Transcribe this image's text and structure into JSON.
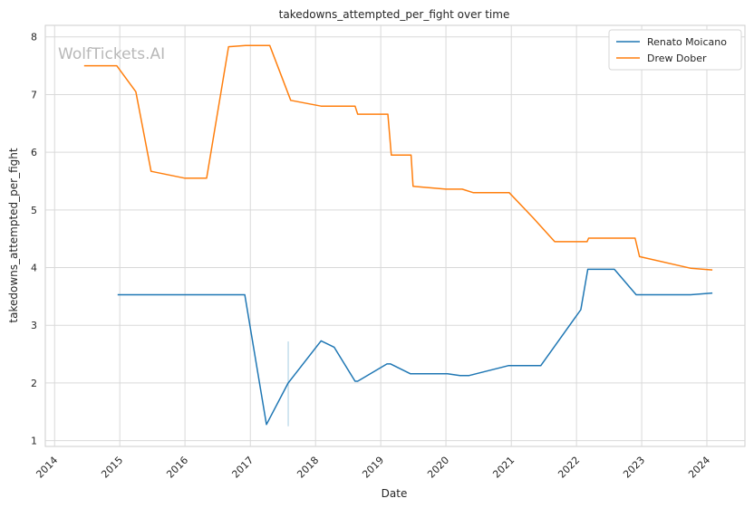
{
  "chart_data": {
    "type": "line",
    "title": "takedowns_attempted_per_fight over time",
    "xlabel": "Date",
    "ylabel": "takedowns_attempted_per_fight",
    "watermark": "WolfTickets.AI",
    "xlim": [
      "2013-11-10",
      "2024-08-01"
    ],
    "ylim": [
      0.9,
      8.2
    ],
    "x_ticks": [
      "2014",
      "2015",
      "2016",
      "2017",
      "2018",
      "2019",
      "2020",
      "2021",
      "2022",
      "2023",
      "2024"
    ],
    "y_ticks": [
      "1",
      "2",
      "3",
      "4",
      "5",
      "6",
      "7",
      "8"
    ],
    "grid": true,
    "legend_position": "top-right",
    "series": [
      {
        "name": "Renato Moicano",
        "color": "#1f77b4",
        "points": [
          [
            "2014-12-20",
            3.53
          ],
          [
            "2016-12-01",
            3.53
          ],
          [
            "2017-04-01",
            1.28
          ],
          [
            "2017-08-01",
            2.0
          ],
          [
            "2018-02-01",
            2.73
          ],
          [
            "2018-04-15",
            2.62
          ],
          [
            "2018-08-10",
            2.03
          ],
          [
            "2018-08-25",
            2.03
          ],
          [
            "2019-02-05",
            2.33
          ],
          [
            "2019-02-25",
            2.33
          ],
          [
            "2019-06-15",
            2.16
          ],
          [
            "2020-01-10",
            2.16
          ],
          [
            "2020-03-20",
            2.13
          ],
          [
            "2020-05-10",
            2.13
          ],
          [
            "2020-12-15",
            2.3
          ],
          [
            "2021-06-15",
            2.3
          ],
          [
            "2022-01-25",
            3.27
          ],
          [
            "2022-03-05",
            3.97
          ],
          [
            "2022-08-01",
            3.97
          ],
          [
            "2022-12-01",
            3.53
          ],
          [
            "2023-10-01",
            3.53
          ],
          [
            "2024-02-01",
            3.56
          ]
        ]
      },
      {
        "name": "Drew Dober",
        "color": "#ff7f0e",
        "points": [
          [
            "2014-06-15",
            7.5
          ],
          [
            "2014-12-15",
            7.5
          ],
          [
            "2015-04-01",
            7.05
          ],
          [
            "2015-06-25",
            5.67
          ],
          [
            "2016-01-01",
            5.55
          ],
          [
            "2016-05-01",
            5.55
          ],
          [
            "2016-09-01",
            7.83
          ],
          [
            "2016-12-05",
            7.85
          ],
          [
            "2017-04-20",
            7.85
          ],
          [
            "2017-08-15",
            6.9
          ],
          [
            "2018-02-01",
            6.8
          ],
          [
            "2018-08-10",
            6.8
          ],
          [
            "2018-08-25",
            6.66
          ],
          [
            "2019-02-10",
            6.66
          ],
          [
            "2019-03-01",
            5.95
          ],
          [
            "2019-06-20",
            5.95
          ],
          [
            "2019-07-01",
            5.41
          ],
          [
            "2020-01-01",
            5.36
          ],
          [
            "2020-04-01",
            5.36
          ],
          [
            "2020-06-01",
            5.3
          ],
          [
            "2020-12-20",
            5.3
          ],
          [
            "2021-05-01",
            4.87
          ],
          [
            "2021-09-01",
            4.45
          ],
          [
            "2022-03-01",
            4.45
          ],
          [
            "2022-03-10",
            4.51
          ],
          [
            "2022-11-25",
            4.51
          ],
          [
            "2022-12-20",
            4.19
          ],
          [
            "2023-10-01",
            3.99
          ],
          [
            "2024-02-01",
            3.96
          ]
        ]
      }
    ],
    "annotation_segment": {
      "color": "#a6cee3",
      "x": "2017-08-01",
      "y": [
        1.25,
        2.72
      ]
    }
  }
}
